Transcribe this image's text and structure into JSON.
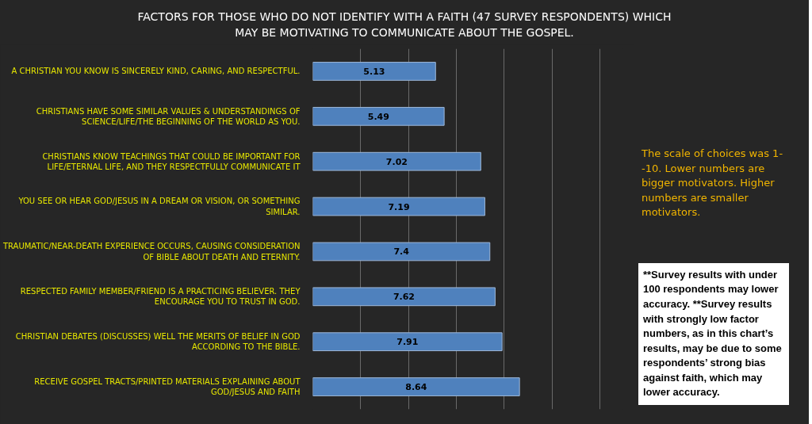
{
  "chart_data": {
    "type": "bar",
    "orientation": "horizontal",
    "title": "FACTORS FOR THOSE WHO DO NOT IDENTIFY WITH A FAITH (47 SURVEY RESPONDENTS) WHICH\nMAY BE MOTIVATING TO COMMUNICATE ABOUT THE GOSPEL.",
    "categories": [
      "A CHRISTIAN YOU KNOW IS SINCERELY KIND, CARING, AND RESPECTFUL.",
      "CHRISTIANS HAVE SOME SIMILAR VALUES & UNDERSTANDINGS OF\nSCIENCE/LIFE/THE BEGINNING OF THE WORLD AS YOU.",
      "CHRISTIANS KNOW TEACHINGS THAT COULD BE IMPORTANT FOR\nLIFE/ETERNAL LIFE, AND THEY RESPECTFULLY COMMUNICATE IT",
      "YOU SEE OR HEAR GOD/JESUS IN A DREAM OR VISION, OR SOMETHING\nSIMILAR.",
      "TRAUMATIC/NEAR-DEATH EXPERIENCE OCCURS, CAUSING CONSIDERATION\nOF BIBLE ABOUT DEATH AND ETERNITY.",
      "RESPECTED FAMILY MEMBER/FRIEND IS A PRACTICING BELIEVER. THEY\nENCOURAGE YOU TO TRUST IN GOD.",
      "CHRISTIAN DEBATES (DISCUSSES) WELL THE MERITS OF BELIEF IN GOD\nACCORDING TO THE BIBLE.",
      "RECEIVE GOSPEL TRACTS/PRINTED MATERIALS EXPLAINING ABOUT\nGOD/JESUS AND FAITH"
    ],
    "values": [
      5.13,
      5.49,
      7.02,
      7.19,
      7.4,
      7.62,
      7.91,
      8.64
    ],
    "color": "#4f81bd",
    "data_labels": true,
    "grid": "x",
    "tick_labels": "y",
    "annotations": [
      "The scale of choices was 1--10. Lower numbers are bigger motivators. Higher numbers are smaller motivators.",
      "**Survey results with under 100 respondents may lower accuracy. **Survey results with strongly low factor numbers, as in this chart’s results, may be due to some respondents’ strong bias against faith, which may lower accuracy."
    ]
  }
}
